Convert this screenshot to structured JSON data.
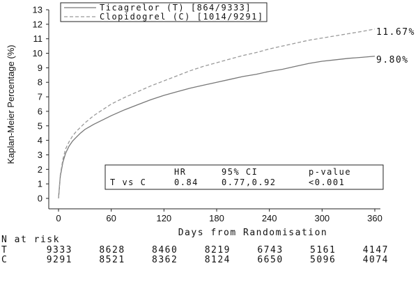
{
  "chart_data": {
    "type": "line",
    "title": "",
    "xlabel": "Days from Randomisation",
    "ylabel": "Kaplan-Meier Percentage (%)",
    "xlim": [
      0,
      360
    ],
    "ylim": [
      0,
      13
    ],
    "x_ticks": [
      "0",
      "60",
      "120",
      "180",
      "240",
      "300",
      "360"
    ],
    "y_ticks": [
      "0",
      "1",
      "2",
      "3",
      "4",
      "5",
      "6",
      "7",
      "8",
      "9",
      "10",
      "11",
      "12",
      "13"
    ],
    "grid": false,
    "legend_position": "top-left",
    "series": [
      {
        "name": "Ticagrelor (T) [864/9333]",
        "line_style": "solid",
        "color": "#777777",
        "end_label": "9.80%",
        "points": [
          [
            0,
            0
          ],
          [
            2,
            1.5
          ],
          [
            5,
            2.5
          ],
          [
            8,
            3.1
          ],
          [
            12,
            3.6
          ],
          [
            16,
            3.95
          ],
          [
            20,
            4.2
          ],
          [
            25,
            4.5
          ],
          [
            30,
            4.75
          ],
          [
            40,
            5.1
          ],
          [
            50,
            5.4
          ],
          [
            60,
            5.7
          ],
          [
            75,
            6.1
          ],
          [
            90,
            6.45
          ],
          [
            105,
            6.8
          ],
          [
            120,
            7.1
          ],
          [
            135,
            7.35
          ],
          [
            150,
            7.6
          ],
          [
            165,
            7.8
          ],
          [
            180,
            8.0
          ],
          [
            195,
            8.2
          ],
          [
            210,
            8.4
          ],
          [
            225,
            8.55
          ],
          [
            240,
            8.75
          ],
          [
            255,
            8.9
          ],
          [
            270,
            9.1
          ],
          [
            285,
            9.3
          ],
          [
            300,
            9.45
          ],
          [
            315,
            9.55
          ],
          [
            330,
            9.65
          ],
          [
            345,
            9.72
          ],
          [
            360,
            9.8
          ]
        ]
      },
      {
        "name": "Clopidogrel (C) [1014/9291]",
        "line_style": "dashed",
        "color": "#999999",
        "end_label": "11.67%",
        "points": [
          [
            0,
            0
          ],
          [
            2,
            1.6
          ],
          [
            5,
            2.7
          ],
          [
            8,
            3.4
          ],
          [
            12,
            3.9
          ],
          [
            16,
            4.3
          ],
          [
            20,
            4.6
          ],
          [
            25,
            4.9
          ],
          [
            30,
            5.2
          ],
          [
            40,
            5.7
          ],
          [
            50,
            6.1
          ],
          [
            60,
            6.5
          ],
          [
            75,
            6.95
          ],
          [
            90,
            7.35
          ],
          [
            105,
            7.75
          ],
          [
            120,
            8.1
          ],
          [
            135,
            8.45
          ],
          [
            150,
            8.8
          ],
          [
            165,
            9.1
          ],
          [
            180,
            9.35
          ],
          [
            195,
            9.6
          ],
          [
            210,
            9.85
          ],
          [
            225,
            10.05
          ],
          [
            240,
            10.3
          ],
          [
            255,
            10.5
          ],
          [
            270,
            10.7
          ],
          [
            285,
            10.9
          ],
          [
            300,
            11.05
          ],
          [
            315,
            11.2
          ],
          [
            330,
            11.35
          ],
          [
            345,
            11.5
          ],
          [
            360,
            11.67
          ]
        ]
      }
    ],
    "stats_box": {
      "headers": [
        "",
        "HR",
        "95% CI",
        "p-value"
      ],
      "row": [
        "T vs C",
        "0.84",
        "0.77,0.92",
        "<0.001"
      ]
    },
    "at_risk": {
      "title": "N at risk",
      "rows": [
        {
          "label": "T",
          "values": [
            "9333",
            "8628",
            "8460",
            "8219",
            "6743",
            "5161",
            "4147"
          ]
        },
        {
          "label": "C",
          "values": [
            "9291",
            "8521",
            "8362",
            "8124",
            "6650",
            "5096",
            "4074"
          ]
        }
      ]
    }
  }
}
